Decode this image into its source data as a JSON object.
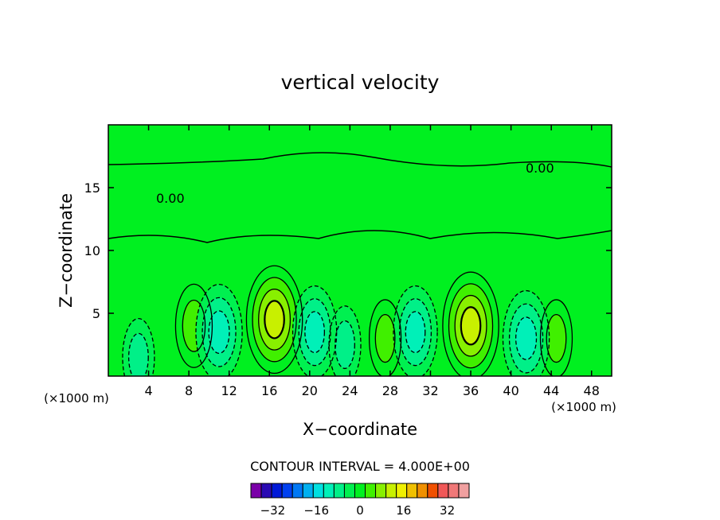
{
  "chart_data": {
    "type": "heatmap",
    "title": "vertical velocity",
    "xlabel": "X−coordinate",
    "ylabel": "Z−coordinate",
    "x_unit_label": "(×1000 m)",
    "y_unit_label": "(×1000 m)",
    "xlim": [
      0,
      50
    ],
    "ylim": [
      0,
      20
    ],
    "x_ticks": [
      4,
      8,
      12,
      16,
      20,
      24,
      28,
      32,
      36,
      40,
      44,
      48
    ],
    "y_ticks": [
      5,
      10,
      15
    ],
    "contour_interval_text": "CONTOUR INTERVAL = 4.000E+00",
    "contour_interval": 4,
    "zero_contour_labels": [
      "0.00",
      "0.00"
    ],
    "colorbar": {
      "min": -40,
      "max": 40,
      "step": 4,
      "tick_values": [
        -32,
        -16,
        0,
        16,
        32
      ],
      "tick_labels": [
        "−32",
        "−16",
        "0",
        "16",
        "32"
      ],
      "colors": [
        "#7a00a8",
        "#2a0ab3",
        "#0019d8",
        "#0040f0",
        "#0078f5",
        "#00b0f0",
        "#00e0e0",
        "#00f0b8",
        "#00f088",
        "#00f050",
        "#00f020",
        "#40f000",
        "#88f000",
        "#c8f000",
        "#f0f000",
        "#f0c000",
        "#f09000",
        "#f05000",
        "#f05858",
        "#f07878",
        "#f0a0a0"
      ]
    },
    "features": [
      {
        "kind": "updraft",
        "x": 16.5,
        "z": 4.5,
        "peak": 14
      },
      {
        "kind": "updraft",
        "x": 36.0,
        "z": 4.0,
        "peak": 14
      },
      {
        "kind": "updraft",
        "x": 8.5,
        "z": 4.0,
        "peak": 6
      },
      {
        "kind": "updraft",
        "x": 27.5,
        "z": 3.0,
        "peak": 4
      },
      {
        "kind": "updraft",
        "x": 44.5,
        "z": 3.0,
        "peak": 4
      },
      {
        "kind": "downdraft",
        "x": 11.0,
        "z": 3.5,
        "peak": -10
      },
      {
        "kind": "downdraft",
        "x": 20.5,
        "z": 3.5,
        "peak": -9
      },
      {
        "kind": "downdraft",
        "x": 30.5,
        "z": 3.5,
        "peak": -9
      },
      {
        "kind": "downdraft",
        "x": 41.5,
        "z": 3.0,
        "peak": -10
      },
      {
        "kind": "downdraft",
        "x": 3.0,
        "z": 1.5,
        "peak": -4
      },
      {
        "kind": "downdraft",
        "x": 23.5,
        "z": 2.5,
        "peak": -4
      }
    ]
  }
}
